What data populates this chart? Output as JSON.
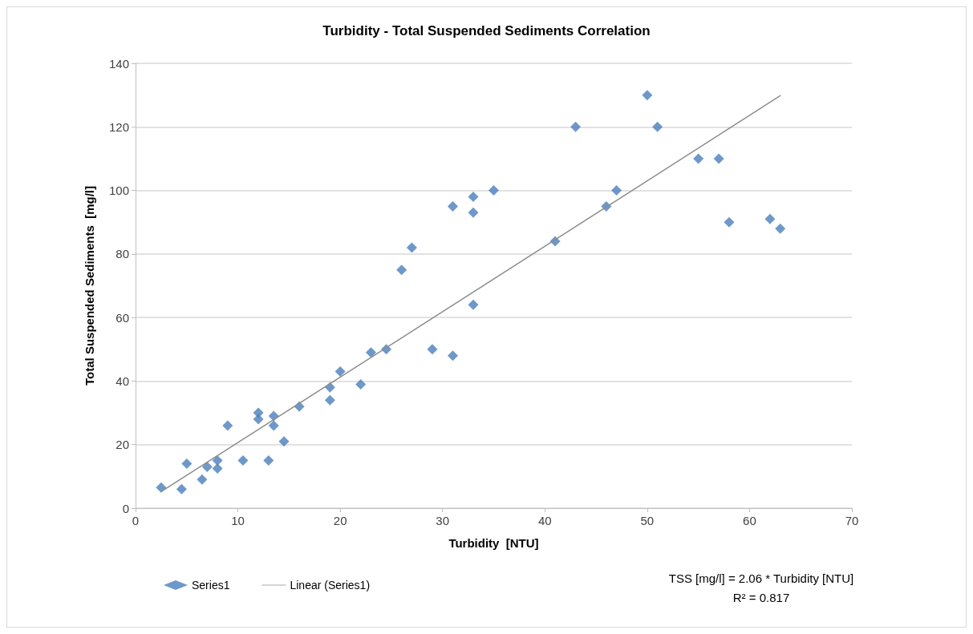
{
  "chart_data": {
    "type": "scatter",
    "title": "Turbidity - Total Suspended Sediments Correlation",
    "xlabel": "Turbidity  [NTU]",
    "ylabel": "Total Suspended Sediments  [mg/l]",
    "xlim": [
      0,
      70
    ],
    "xticks": [
      0,
      10,
      20,
      30,
      40,
      50,
      60,
      70
    ],
    "ylim": [
      0,
      140
    ],
    "yticks": [
      0,
      20,
      40,
      60,
      80,
      100,
      120,
      140
    ],
    "grid": "y",
    "legend": "bottom left",
    "marker": "diamond",
    "series": [
      {
        "name": "Series1",
        "color": "#4a7ebb",
        "x": [
          2.5,
          4.5,
          5,
          6.5,
          7,
          8,
          8,
          9,
          10.5,
          12,
          12,
          13,
          13.5,
          13.5,
          14.5,
          16,
          19,
          19,
          20,
          22,
          23,
          24.5,
          26,
          27,
          29,
          31,
          31,
          33,
          33,
          33,
          35,
          41,
          43,
          46,
          47,
          50,
          51,
          55,
          57,
          58,
          62,
          63
        ],
        "values": [
          6.5,
          6,
          14,
          9,
          13,
          15,
          12.5,
          26,
          15,
          30,
          28,
          15,
          29,
          26,
          21,
          32,
          38,
          34,
          43,
          39,
          49,
          50,
          75,
          82,
          50,
          95,
          48,
          98,
          93,
          64,
          100,
          84,
          120,
          95,
          100,
          130,
          120,
          110,
          110,
          90,
          91,
          88
        ]
      },
      {
        "name": "Linear (Series1)",
        "type": "line",
        "color": "#8c8c8c",
        "marker": "none",
        "x": [
          2.5,
          63
        ],
        "values": [
          5.2,
          129.8
        ]
      }
    ],
    "annotations": [
      "TSS [mg/l] = 2.06 * Turbidity [NTU]",
      "R² = 0.817"
    ]
  }
}
